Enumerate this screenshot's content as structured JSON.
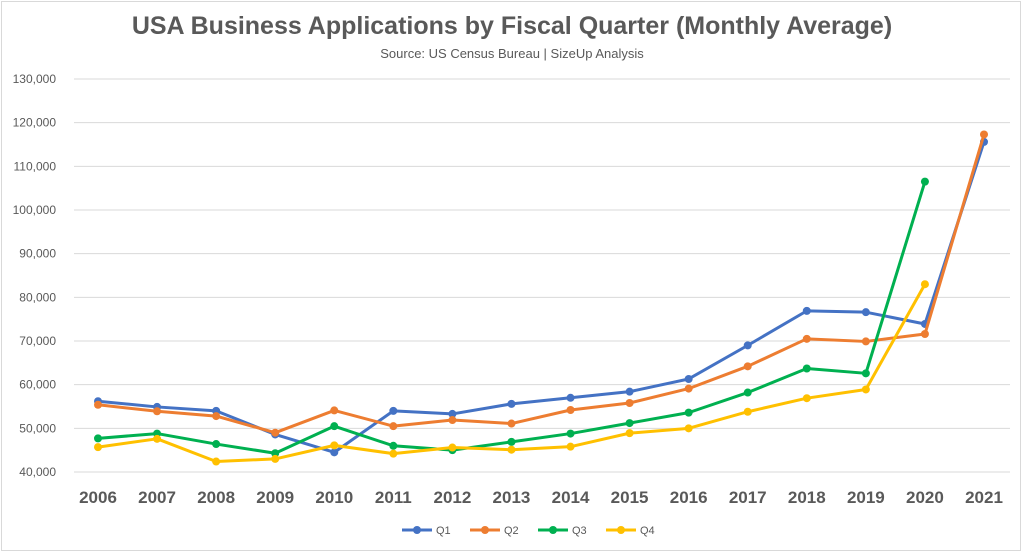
{
  "chart_data": {
    "type": "line",
    "title": "USA Business Applications by Fiscal Quarter (Monthly Average)",
    "subtitle": "Source: US Census Bureau |  SizeUp Analysis",
    "categories": [
      "2006",
      "2007",
      "2008",
      "2009",
      "2010",
      "2011",
      "2012",
      "2013",
      "2014",
      "2015",
      "2016",
      "2017",
      "2018",
      "2019",
      "2020",
      "2021"
    ],
    "ylim": [
      40000,
      130000
    ],
    "yticks": [
      40000,
      50000,
      60000,
      70000,
      80000,
      90000,
      100000,
      110000,
      120000,
      130000
    ],
    "ytick_labels": [
      "40,000",
      "50,000",
      "60,000",
      "70,000",
      "80,000",
      "90,000",
      "100,000",
      "110,000",
      "120,000",
      "130,000"
    ],
    "grid": true,
    "legend_position": "bottom",
    "series": [
      {
        "name": "Q1",
        "color": "#4472C4",
        "values": [
          56200,
          54900,
          54000,
          48600,
          44500,
          54000,
          53300,
          55600,
          57000,
          58400,
          61300,
          69000,
          76900,
          76600,
          73900,
          115600
        ]
      },
      {
        "name": "Q2",
        "color": "#ED7D31",
        "values": [
          55400,
          53900,
          52800,
          49000,
          54100,
          50500,
          51900,
          51100,
          54200,
          55800,
          59100,
          64200,
          70500,
          69900,
          71600,
          117300
        ]
      },
      {
        "name": "Q3",
        "color": "#00B050",
        "values": [
          47700,
          48800,
          46400,
          44300,
          50500,
          46000,
          45000,
          46900,
          48800,
          51200,
          53600,
          58200,
          63700,
          62600,
          106500,
          null
        ]
      },
      {
        "name": "Q4",
        "color": "#FFC000",
        "values": [
          45700,
          47600,
          42400,
          43000,
          46100,
          44200,
          45600,
          45100,
          45800,
          48900,
          50000,
          53800,
          56900,
          58900,
          83000,
          null
        ]
      }
    ]
  }
}
